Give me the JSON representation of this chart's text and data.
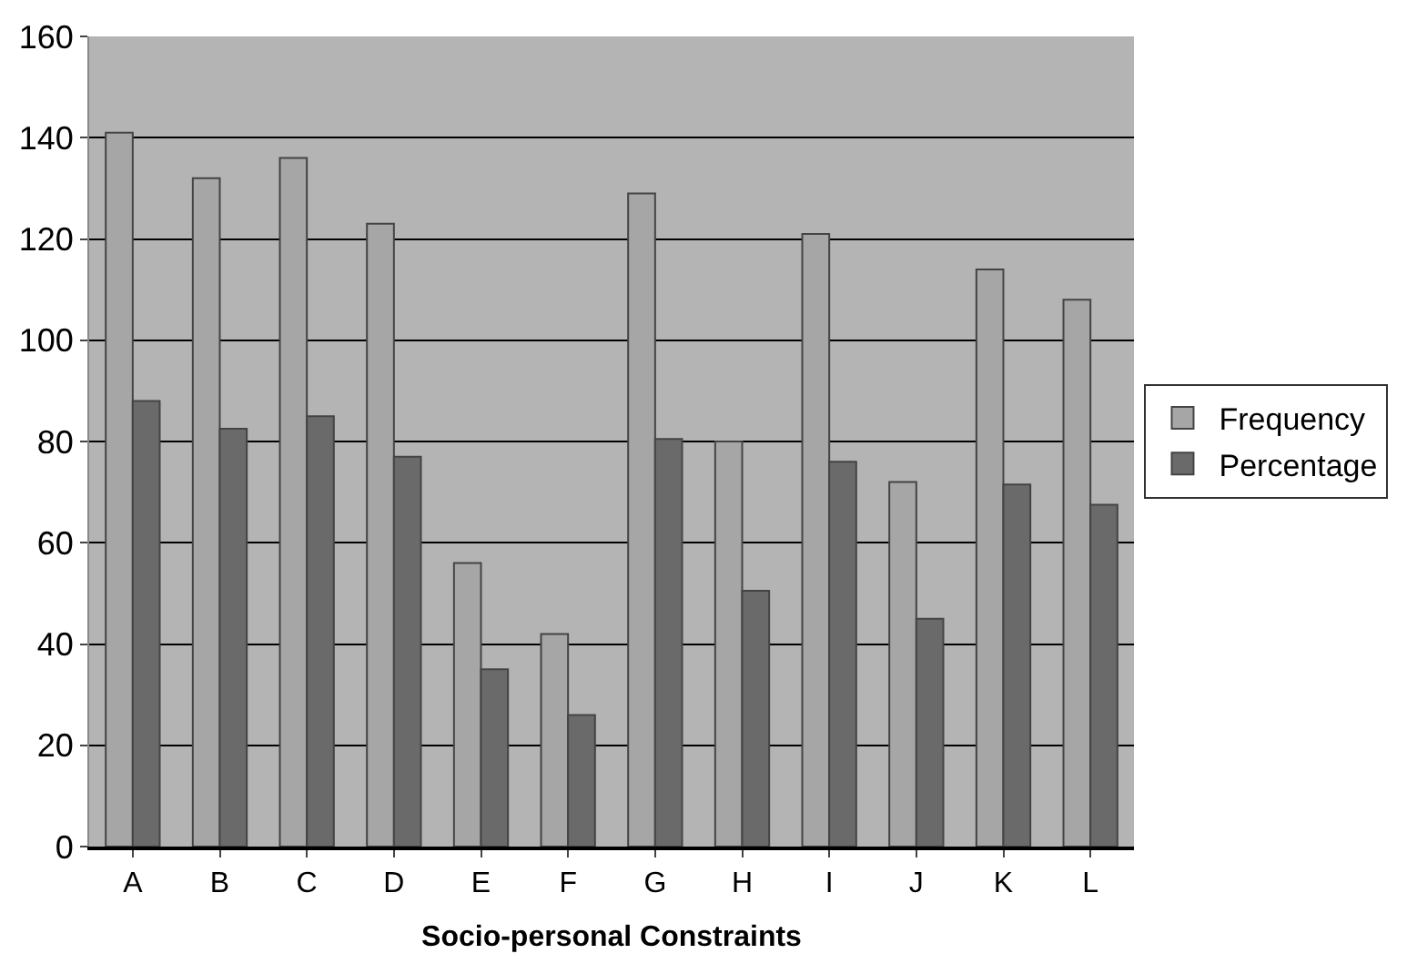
{
  "chart_data": {
    "type": "bar",
    "xlabel": "Socio-personal Constraints",
    "categories": [
      "A",
      "B",
      "C",
      "D",
      "E",
      "F",
      "G",
      "H",
      "I",
      "J",
      "K",
      "L"
    ],
    "series": [
      {
        "name": "Frequency",
        "color": "#a6a6a6",
        "values": [
          141,
          132,
          136,
          123,
          56,
          42,
          129,
          80,
          121,
          72,
          114,
          108
        ]
      },
      {
        "name": "Percentage",
        "color": "#6a6a6a",
        "values": [
          88,
          82.5,
          85,
          77,
          35,
          26,
          80.5,
          50.5,
          76,
          45,
          71.5,
          67.5
        ]
      }
    ],
    "ylim": [
      0,
      160
    ],
    "yticks": [
      0,
      20,
      40,
      60,
      80,
      100,
      120,
      140,
      160
    ],
    "grid": "y",
    "legend": "right"
  }
}
